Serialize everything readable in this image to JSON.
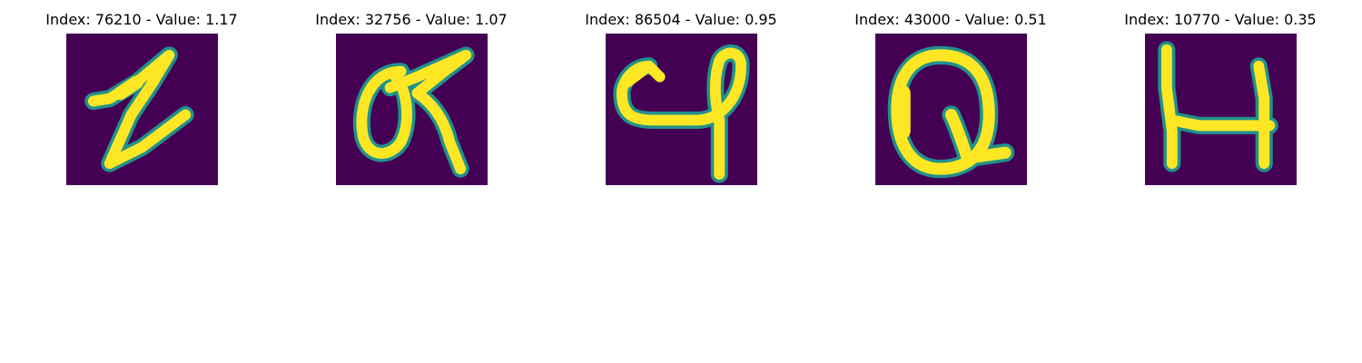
{
  "colors": {
    "background": "#440154",
    "stroke_outer": "#21918c",
    "stroke_inner": "#fde725"
  },
  "panels": [
    {
      "title": "Index: 76210 - Value: 1.17",
      "glyph": "handwritten-z-like"
    },
    {
      "title": "Index: 32756 - Value: 1.07",
      "glyph": "handwritten-alpha-like"
    },
    {
      "title": "Index: 86504 - Value: 0.95",
      "glyph": "handwritten-c-q-like"
    },
    {
      "title": "Index: 43000 - Value: 0.51",
      "glyph": "handwritten-Q"
    },
    {
      "title": "Index: 10770 - Value: 0.35",
      "glyph": "handwritten-H"
    }
  ]
}
